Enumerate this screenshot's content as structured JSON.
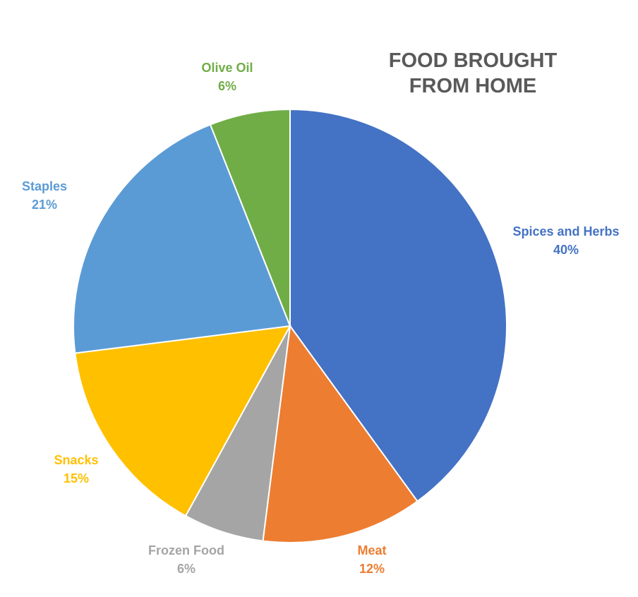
{
  "chart_data": {
    "type": "pie",
    "title_lines": [
      "FOOD BROUGHT",
      "FROM HOME"
    ],
    "slices": [
      {
        "label": "Spices and Herbs",
        "value": 40,
        "pct_label": "40%",
        "color": "#4472C4"
      },
      {
        "label": "Meat",
        "value": 12,
        "pct_label": "12%",
        "color": "#ED7D31"
      },
      {
        "label": "Frozen Food",
        "value": 6,
        "pct_label": "6%",
        "color": "#A5A5A5"
      },
      {
        "label": "Snacks",
        "value": 15,
        "pct_label": "15%",
        "color": "#FFC000"
      },
      {
        "label": "Staples",
        "value": 21,
        "pct_label": "21%",
        "color": "#5B9BD5"
      },
      {
        "label": "Olive Oil",
        "value": 6,
        "pct_label": "6%",
        "color": "#70AD47"
      }
    ],
    "legend": "none"
  }
}
